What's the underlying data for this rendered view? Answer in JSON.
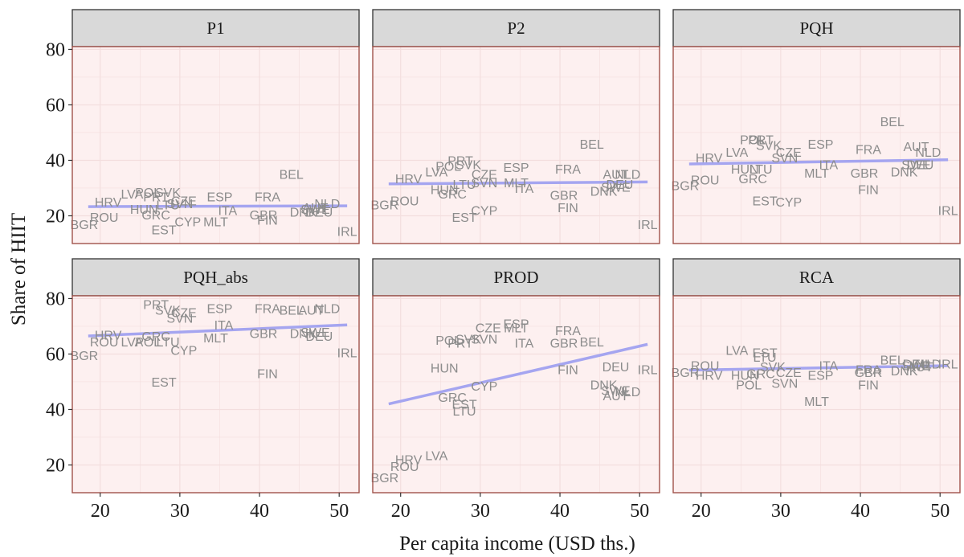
{
  "chart_data": {
    "type": "scatter",
    "subtype": "faceted text-label scatter with linear trend line",
    "xlabel": "Per capita income (USD ths.)",
    "ylabel": "Share of HIIT",
    "x_ticks": [
      20,
      30,
      40,
      50
    ],
    "y_ticks": [
      20,
      40,
      60,
      80
    ],
    "xlim": [
      16.5,
      52.5
    ],
    "ylim": [
      10,
      81
    ],
    "grid": true,
    "colors": {
      "panel_bg": "#fdf0f0",
      "panel_border": "#a0524a",
      "strip_bg": "#d9d9d9",
      "strip_border": "#333333",
      "label": "#8c8c8c",
      "trend": "#a5a5f0",
      "grid": "#f3dede"
    },
    "facets": [
      {
        "name": "P1",
        "trend": [
          [
            18.5,
            23.3
          ],
          [
            51,
            23.6
          ]
        ],
        "points": [
          {
            "label": "BGR",
            "x": 18,
            "y": 17
          },
          {
            "label": "ROU",
            "x": 20.5,
            "y": 19.5
          },
          {
            "label": "HRV",
            "x": 21,
            "y": 25
          },
          {
            "label": "LVA",
            "x": 24,
            "y": 28
          },
          {
            "label": "POL",
            "x": 26,
            "y": 28.5
          },
          {
            "label": "SVK",
            "x": 28.5,
            "y": 28.5
          },
          {
            "label": "HUN",
            "x": 25.5,
            "y": 22.5
          },
          {
            "label": "GRC",
            "x": 27,
            "y": 20.5
          },
          {
            "label": "PRT",
            "x": 27,
            "y": 27
          },
          {
            "label": "LTU",
            "x": 28.5,
            "y": 24
          },
          {
            "label": "CZE",
            "x": 30.5,
            "y": 25.5
          },
          {
            "label": "SVN",
            "x": 30,
            "y": 24.5
          },
          {
            "label": "EST",
            "x": 28,
            "y": 15
          },
          {
            "label": "CYP",
            "x": 31,
            "y": 18
          },
          {
            "label": "MLT",
            "x": 34.5,
            "y": 18
          },
          {
            "label": "ESP",
            "x": 35,
            "y": 27
          },
          {
            "label": "ITA",
            "x": 36,
            "y": 22
          },
          {
            "label": "FRA",
            "x": 41,
            "y": 27
          },
          {
            "label": "GBR",
            "x": 40.5,
            "y": 20.5
          },
          {
            "label": "FIN",
            "x": 41,
            "y": 18.5
          },
          {
            "label": "BEL",
            "x": 44,
            "y": 35
          },
          {
            "label": "AUT",
            "x": 47,
            "y": 23
          },
          {
            "label": "NLD",
            "x": 48.5,
            "y": 24.5
          },
          {
            "label": "DNK",
            "x": 45.5,
            "y": 21.5
          },
          {
            "label": "DEU",
            "x": 47.5,
            "y": 21.5
          },
          {
            "label": "SWE",
            "x": 47,
            "y": 22.5
          },
          {
            "label": "IRL",
            "x": 51,
            "y": 14.5
          }
        ]
      },
      {
        "name": "P2",
        "trend": [
          [
            18.5,
            31.5
          ],
          [
            51,
            32.2
          ]
        ],
        "points": [
          {
            "label": "BGR",
            "x": 18,
            "y": 24
          },
          {
            "label": "ROU",
            "x": 20.5,
            "y": 25.5
          },
          {
            "label": "HRV",
            "x": 21,
            "y": 33.5
          },
          {
            "label": "LVA",
            "x": 24.5,
            "y": 36
          },
          {
            "label": "POL",
            "x": 26,
            "y": 38
          },
          {
            "label": "PRT",
            "x": 27.5,
            "y": 40
          },
          {
            "label": "SVK",
            "x": 28.5,
            "y": 38.5
          },
          {
            "label": "HUN",
            "x": 25.5,
            "y": 29.5
          },
          {
            "label": "GRC",
            "x": 26.5,
            "y": 28
          },
          {
            "label": "LTU",
            "x": 28,
            "y": 31.5
          },
          {
            "label": "CZE",
            "x": 30.5,
            "y": 35
          },
          {
            "label": "SVN",
            "x": 30.5,
            "y": 32
          },
          {
            "label": "MLT",
            "x": 34.5,
            "y": 32
          },
          {
            "label": "ESP",
            "x": 34.5,
            "y": 37.5
          },
          {
            "label": "ITA",
            "x": 35.5,
            "y": 30
          },
          {
            "label": "EST",
            "x": 28,
            "y": 19.5
          },
          {
            "label": "CYP",
            "x": 30.5,
            "y": 22
          },
          {
            "label": "BEL",
            "x": 44,
            "y": 46
          },
          {
            "label": "FRA",
            "x": 41,
            "y": 37
          },
          {
            "label": "GBR",
            "x": 40.5,
            "y": 27.5
          },
          {
            "label": "FIN",
            "x": 41,
            "y": 23
          },
          {
            "label": "AUT",
            "x": 47,
            "y": 35
          },
          {
            "label": "NLD",
            "x": 48.5,
            "y": 35
          },
          {
            "label": "DNK",
            "x": 45.5,
            "y": 29
          },
          {
            "label": "DEU",
            "x": 47.5,
            "y": 31.5
          },
          {
            "label": "SWE",
            "x": 47,
            "y": 30.5
          },
          {
            "label": "IRL",
            "x": 51,
            "y": 17
          }
        ]
      },
      {
        "name": "PQH",
        "trend": [
          [
            18.5,
            38.7
          ],
          [
            51,
            40.2
          ]
        ],
        "points": [
          {
            "label": "BGR",
            "x": 18,
            "y": 31
          },
          {
            "label": "ROU",
            "x": 20.5,
            "y": 33
          },
          {
            "label": "HRV",
            "x": 21,
            "y": 41
          },
          {
            "label": "LVA",
            "x": 24.5,
            "y": 43
          },
          {
            "label": "POL",
            "x": 26.5,
            "y": 47.5
          },
          {
            "label": "PRT",
            "x": 27.5,
            "y": 47.5
          },
          {
            "label": "SVK",
            "x": 28.5,
            "y": 45.5
          },
          {
            "label": "SVN",
            "x": 30.5,
            "y": 41
          },
          {
            "label": "CZE",
            "x": 31,
            "y": 43
          },
          {
            "label": "HUN",
            "x": 25.5,
            "y": 37
          },
          {
            "label": "LTU",
            "x": 27.5,
            "y": 37
          },
          {
            "label": "GRC",
            "x": 26.5,
            "y": 33.5
          },
          {
            "label": "EST",
            "x": 28,
            "y": 25.5
          },
          {
            "label": "CYP",
            "x": 31,
            "y": 25
          },
          {
            "label": "MLT",
            "x": 34.5,
            "y": 35.5
          },
          {
            "label": "ITA",
            "x": 36,
            "y": 38.5
          },
          {
            "label": "ESP",
            "x": 35,
            "y": 46
          },
          {
            "label": "BEL",
            "x": 44,
            "y": 54
          },
          {
            "label": "FRA",
            "x": 41,
            "y": 44
          },
          {
            "label": "AUT",
            "x": 47,
            "y": 45
          },
          {
            "label": "NLD",
            "x": 48.5,
            "y": 43
          },
          {
            "label": "GBR",
            "x": 40.5,
            "y": 35.5
          },
          {
            "label": "FIN",
            "x": 41,
            "y": 29.5
          },
          {
            "label": "DNK",
            "x": 45.5,
            "y": 36
          },
          {
            "label": "DEU",
            "x": 47.5,
            "y": 38.5
          },
          {
            "label": "SWE",
            "x": 47,
            "y": 38.5
          },
          {
            "label": "IRL",
            "x": 51,
            "y": 22
          }
        ]
      },
      {
        "name": "PQH_abs",
        "trend": [
          [
            18.5,
            66.5
          ],
          [
            51,
            70.5
          ]
        ],
        "points": [
          {
            "label": "BGR",
            "x": 18,
            "y": 59.5
          },
          {
            "label": "ROU",
            "x": 20.5,
            "y": 64.5
          },
          {
            "label": "LVA",
            "x": 24,
            "y": 64.5
          },
          {
            "label": "HRV",
            "x": 21,
            "y": 67
          },
          {
            "label": "POL",
            "x": 26,
            "y": 64.5
          },
          {
            "label": "LTU",
            "x": 28.5,
            "y": 64.5
          },
          {
            "label": "GRC",
            "x": 27,
            "y": 66.5
          },
          {
            "label": "PRT",
            "x": 27,
            "y": 78
          },
          {
            "label": "SVK",
            "x": 28.5,
            "y": 76
          },
          {
            "label": "CZE",
            "x": 30.5,
            "y": 75
          },
          {
            "label": "SVN",
            "x": 30,
            "y": 73
          },
          {
            "label": "CYP",
            "x": 30.5,
            "y": 61.5
          },
          {
            "label": "EST",
            "x": 28,
            "y": 50
          },
          {
            "label": "MLT",
            "x": 34.5,
            "y": 66
          },
          {
            "label": "ITA",
            "x": 35.5,
            "y": 70.5
          },
          {
            "label": "ESP",
            "x": 35,
            "y": 76.5
          },
          {
            "label": "FRA",
            "x": 41,
            "y": 76.5
          },
          {
            "label": "GBR",
            "x": 40.5,
            "y": 67.5
          },
          {
            "label": "FIN",
            "x": 41,
            "y": 53
          },
          {
            "label": "BEL",
            "x": 44,
            "y": 76
          },
          {
            "label": "AUT",
            "x": 46.5,
            "y": 76
          },
          {
            "label": "NLD",
            "x": 48.5,
            "y": 76.5
          },
          {
            "label": "DNK",
            "x": 45.5,
            "y": 67.5
          },
          {
            "label": "DEU",
            "x": 47.5,
            "y": 66.5
          },
          {
            "label": "SWE",
            "x": 47,
            "y": 68
          },
          {
            "label": "IRL",
            "x": 51,
            "y": 60.5
          }
        ]
      },
      {
        "name": "PROD",
        "trend": [
          [
            18.5,
            42
          ],
          [
            51,
            63.5
          ]
        ],
        "points": [
          {
            "label": "BGR",
            "x": 18,
            "y": 15.5
          },
          {
            "label": "ROU",
            "x": 20.5,
            "y": 19.5
          },
          {
            "label": "HRV",
            "x": 21,
            "y": 22
          },
          {
            "label": "LVA",
            "x": 24.5,
            "y": 23.5
          },
          {
            "label": "HUN",
            "x": 25.5,
            "y": 55
          },
          {
            "label": "GRC",
            "x": 26.5,
            "y": 44.5
          },
          {
            "label": "EST",
            "x": 28,
            "y": 42
          },
          {
            "label": "LTU",
            "x": 28,
            "y": 39.5
          },
          {
            "label": "CYP",
            "x": 30.5,
            "y": 48.5
          },
          {
            "label": "POL",
            "x": 26,
            "y": 65
          },
          {
            "label": "PRT",
            "x": 27.5,
            "y": 64
          },
          {
            "label": "SVK",
            "x": 28.5,
            "y": 65.5
          },
          {
            "label": "SVN",
            "x": 30.5,
            "y": 65.5
          },
          {
            "label": "CZE",
            "x": 31,
            "y": 69.5
          },
          {
            "label": "MLT",
            "x": 34.5,
            "y": 69.5
          },
          {
            "label": "ESP",
            "x": 34.5,
            "y": 71
          },
          {
            "label": "ITA",
            "x": 35.5,
            "y": 64
          },
          {
            "label": "FRA",
            "x": 41,
            "y": 68.5
          },
          {
            "label": "GBR",
            "x": 40.5,
            "y": 64
          },
          {
            "label": "BEL",
            "x": 44,
            "y": 64.5
          },
          {
            "label": "FIN",
            "x": 41,
            "y": 54.5
          },
          {
            "label": "DEU",
            "x": 47,
            "y": 55.5
          },
          {
            "label": "DNK",
            "x": 45.5,
            "y": 49
          },
          {
            "label": "SWE",
            "x": 47,
            "y": 47
          },
          {
            "label": "NLD",
            "x": 48.5,
            "y": 46.5
          },
          {
            "label": "AUT",
            "x": 47,
            "y": 45
          },
          {
            "label": "IRL",
            "x": 51,
            "y": 54.5
          }
        ]
      },
      {
        "name": "RCA",
        "trend": [
          [
            18.5,
            54.2
          ],
          [
            51,
            55.8
          ]
        ],
        "points": [
          {
            "label": "BGR",
            "x": 18,
            "y": 53.5
          },
          {
            "label": "ROU",
            "x": 20.5,
            "y": 56
          },
          {
            "label": "HRV",
            "x": 21,
            "y": 52.5
          },
          {
            "label": "LVA",
            "x": 24.5,
            "y": 61.5
          },
          {
            "label": "EST",
            "x": 28,
            "y": 60.5
          },
          {
            "label": "LTU",
            "x": 28,
            "y": 59
          },
          {
            "label": "SVK",
            "x": 29,
            "y": 55.5
          },
          {
            "label": "HUN",
            "x": 25.5,
            "y": 52.5
          },
          {
            "label": "GRC",
            "x": 27.5,
            "y": 53
          },
          {
            "label": "POL",
            "x": 26,
            "y": 49
          },
          {
            "label": "SVN",
            "x": 30.5,
            "y": 49.5
          },
          {
            "label": "CZE",
            "x": 31,
            "y": 53.5
          },
          {
            "label": "ESP",
            "x": 35,
            "y": 52.5
          },
          {
            "label": "ITA",
            "x": 36,
            "y": 56
          },
          {
            "label": "MLT",
            "x": 34.5,
            "y": 43
          },
          {
            "label": "FRA",
            "x": 41,
            "y": 54.5
          },
          {
            "label": "GBR",
            "x": 41,
            "y": 53.5
          },
          {
            "label": "FIN",
            "x": 41,
            "y": 49
          },
          {
            "label": "BEL",
            "x": 44,
            "y": 58
          },
          {
            "label": "DNK",
            "x": 45.5,
            "y": 54
          },
          {
            "label": "DEU",
            "x": 47,
            "y": 56.5
          },
          {
            "label": "SWE",
            "x": 47,
            "y": 56
          },
          {
            "label": "NLD",
            "x": 48.5,
            "y": 56.5
          },
          {
            "label": "AUT",
            "x": 47.5,
            "y": 55.5
          },
          {
            "label": "IRL",
            "x": 51,
            "y": 56.5
          }
        ]
      }
    ]
  }
}
